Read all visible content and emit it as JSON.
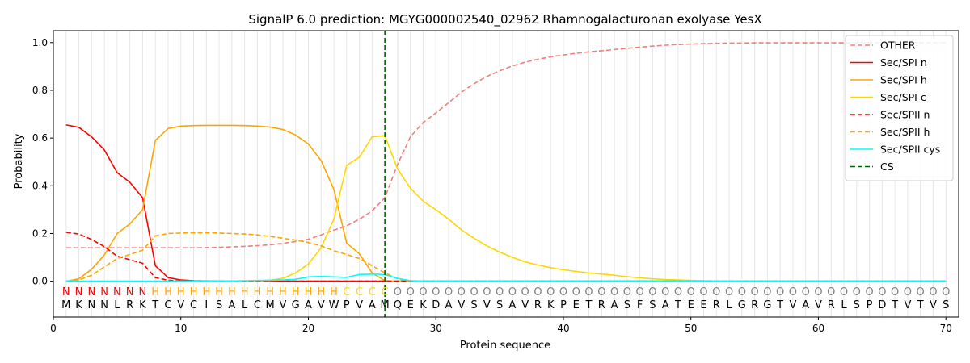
{
  "chart_data": {
    "type": "line",
    "title": "SignalP 6.0 prediction: MGYG000002540_02962 Rhamnogalacturonan exolyase YesX",
    "xlabel": "Protein sequence",
    "ylabel": "Probability",
    "xlim": [
      0,
      71
    ],
    "ylim": [
      -0.15,
      1.05
    ],
    "xticks": [
      0,
      10,
      20,
      30,
      40,
      50,
      60,
      70
    ],
    "yticks": [
      0.0,
      0.2,
      0.4,
      0.6,
      0.8,
      1.0
    ],
    "grid": "vertical lines at each position",
    "legend_position": "top-right",
    "sequence": [
      "M",
      "K",
      "N",
      "N",
      "L",
      "R",
      "K",
      "T",
      "C",
      "V",
      "C",
      "I",
      "S",
      "A",
      "L",
      "C",
      "M",
      "V",
      "G",
      "A",
      "V",
      "W",
      "P",
      "V",
      "A",
      "M",
      "Q",
      "E",
      "K",
      "D",
      "A",
      "V",
      "S",
      "V",
      "S",
      "A",
      "V",
      "R",
      "K",
      "P",
      "E",
      "T",
      "R",
      "A",
      "S",
      "F",
      "S",
      "A",
      "T",
      "E",
      "E",
      "R",
      "L",
      "G",
      "R",
      "G",
      "T",
      "V",
      "A",
      "V",
      "R",
      "L",
      "S",
      "P",
      "D",
      "T",
      "V",
      "T",
      "V",
      "S"
    ],
    "annotation": [
      "N",
      "N",
      "N",
      "N",
      "N",
      "N",
      "N",
      "H",
      "H",
      "H",
      "H",
      "H",
      "H",
      "H",
      "H",
      "H",
      "H",
      "H",
      "H",
      "H",
      "H",
      "H",
      "C",
      "C",
      "C",
      "C",
      "O",
      "O",
      "O",
      "O",
      "O",
      "O",
      "O",
      "O",
      "O",
      "O",
      "O",
      "O",
      "O",
      "O",
      "O",
      "O",
      "O",
      "O",
      "O",
      "O",
      "O",
      "O",
      "O",
      "O",
      "O",
      "O",
      "O",
      "O",
      "O",
      "O",
      "O",
      "O",
      "O",
      "O",
      "O",
      "O",
      "O",
      "O",
      "O",
      "O",
      "O",
      "O",
      "O",
      "O"
    ],
    "annotation_colors": {
      "N": "#ff0000",
      "H": "#ffa500",
      "C": "#ffd700",
      "O": "#808080"
    },
    "cs_position": 26,
    "series": [
      {
        "name": "OTHER",
        "color": "#f08080",
        "dash": "dashed",
        "values": [
          0.14,
          0.14,
          0.14,
          0.14,
          0.14,
          0.14,
          0.14,
          0.14,
          0.14,
          0.14,
          0.14,
          0.141,
          0.142,
          0.144,
          0.146,
          0.149,
          0.153,
          0.159,
          0.166,
          0.176,
          0.194,
          0.214,
          0.232,
          0.26,
          0.295,
          0.35,
          0.49,
          0.605,
          0.665,
          0.705,
          0.748,
          0.792,
          0.828,
          0.858,
          0.882,
          0.902,
          0.918,
          0.93,
          0.94,
          0.948,
          0.955,
          0.961,
          0.966,
          0.971,
          0.976,
          0.981,
          0.985,
          0.989,
          0.992,
          0.994,
          0.996,
          0.997,
          0.998,
          0.998,
          0.999,
          0.999,
          0.999,
          0.999,
          0.999,
          0.999,
          0.999,
          0.999,
          0.999,
          0.999,
          0.999,
          0.999,
          0.999,
          0.999,
          0.999,
          0.999
        ]
      },
      {
        "name": "Sec/SPI n",
        "color": "#ff0000",
        "dash": "solid",
        "values": [
          0.655,
          0.645,
          0.605,
          0.55,
          0.455,
          0.415,
          0.35,
          0.065,
          0.015,
          0.005,
          0.002,
          0.001,
          0,
          0,
          0,
          0,
          0,
          0,
          0,
          0,
          0,
          0,
          0,
          0,
          0,
          0,
          0,
          0,
          0,
          0,
          0,
          0,
          0,
          0,
          0,
          0,
          0,
          0,
          0,
          0,
          0,
          0,
          0,
          0,
          0,
          0,
          0,
          0,
          0,
          0,
          0,
          0,
          0,
          0,
          0,
          0,
          0,
          0,
          0,
          0,
          0,
          0,
          0,
          0,
          0,
          0,
          0,
          0,
          0,
          0
        ]
      },
      {
        "name": "Sec/SPI h",
        "color": "#ffa500",
        "dash": "solid",
        "values": [
          0.0,
          0.01,
          0.05,
          0.11,
          0.2,
          0.24,
          0.3,
          0.59,
          0.64,
          0.65,
          0.652,
          0.653,
          0.653,
          0.653,
          0.652,
          0.65,
          0.646,
          0.636,
          0.613,
          0.575,
          0.505,
          0.385,
          0.16,
          0.115,
          0.035,
          0.002,
          0,
          0,
          0,
          0,
          0,
          0,
          0,
          0,
          0,
          0,
          0,
          0,
          0,
          0,
          0,
          0,
          0,
          0,
          0,
          0,
          0,
          0,
          0,
          0,
          0,
          0,
          0,
          0,
          0,
          0,
          0,
          0,
          0,
          0,
          0,
          0,
          0,
          0,
          0,
          0,
          0,
          0,
          0,
          0
        ]
      },
      {
        "name": "Sec/SPI c",
        "color": "#ffd700",
        "dash": "solid",
        "values": [
          0,
          0,
          0,
          0,
          0,
          0,
          0,
          0,
          0,
          0,
          0,
          0,
          0,
          0,
          0,
          0.001,
          0.004,
          0.012,
          0.035,
          0.072,
          0.14,
          0.26,
          0.485,
          0.52,
          0.605,
          0.61,
          0.47,
          0.39,
          0.335,
          0.3,
          0.26,
          0.215,
          0.18,
          0.148,
          0.122,
          0.1,
          0.081,
          0.068,
          0.057,
          0.048,
          0.041,
          0.035,
          0.03,
          0.025,
          0.019,
          0.014,
          0.01,
          0.007,
          0.005,
          0.003,
          0.002,
          0.001,
          0.001,
          0,
          0,
          0,
          0,
          0,
          0,
          0,
          0,
          0,
          0,
          0,
          0,
          0,
          0,
          0,
          0,
          0
        ]
      },
      {
        "name": "Sec/SPII n",
        "color": "#ff0000",
        "dash": "dashed",
        "values": [
          0.205,
          0.198,
          0.175,
          0.145,
          0.105,
          0.09,
          0.075,
          0.015,
          0.004,
          0.001,
          0,
          0,
          0,
          0,
          0,
          0,
          0,
          0,
          0,
          0,
          0,
          0,
          0,
          0,
          0,
          0,
          0,
          0,
          0,
          0,
          0,
          0,
          0,
          0,
          0,
          0,
          0,
          0,
          0,
          0,
          0,
          0,
          0,
          0,
          0,
          0,
          0,
          0,
          0,
          0,
          0,
          0,
          0,
          0,
          0,
          0,
          0,
          0,
          0,
          0,
          0,
          0,
          0,
          0,
          0,
          0,
          0,
          0,
          0,
          0
        ]
      },
      {
        "name": "Sec/SPII h",
        "color": "#ffa500",
        "dash": "dashed",
        "values": [
          0.0,
          0.005,
          0.025,
          0.06,
          0.095,
          0.112,
          0.13,
          0.19,
          0.2,
          0.202,
          0.203,
          0.203,
          0.202,
          0.2,
          0.198,
          0.194,
          0.188,
          0.18,
          0.172,
          0.162,
          0.148,
          0.128,
          0.112,
          0.095,
          0.065,
          0.035,
          0.01,
          0.002,
          0,
          0,
          0,
          0,
          0,
          0,
          0,
          0,
          0,
          0,
          0,
          0,
          0,
          0,
          0,
          0,
          0,
          0,
          0,
          0,
          0,
          0,
          0,
          0,
          0,
          0,
          0,
          0,
          0,
          0,
          0,
          0,
          0,
          0,
          0,
          0,
          0,
          0,
          0,
          0,
          0,
          0
        ]
      },
      {
        "name": "Sec/SPII cys",
        "color": "#00ffff",
        "dash": "solid",
        "values": [
          0,
          0,
          0,
          0,
          0,
          0,
          0,
          0,
          0,
          0,
          0,
          0,
          0,
          0.001,
          0.002,
          0.003,
          0.004,
          0.005,
          0.008,
          0.018,
          0.02,
          0.018,
          0.016,
          0.028,
          0.03,
          0.028,
          0.012,
          0.002,
          0,
          0,
          0,
          0,
          0,
          0,
          0,
          0,
          0,
          0,
          0,
          0,
          0,
          0,
          0,
          0,
          0,
          0,
          0,
          0,
          0,
          0,
          0,
          0,
          0,
          0,
          0,
          0,
          0,
          0,
          0,
          0,
          0,
          0,
          0,
          0,
          0,
          0,
          0,
          0,
          0,
          0
        ]
      },
      {
        "name": "CS",
        "color": "#006400",
        "dash": "dashed",
        "values": []
      }
    ]
  }
}
